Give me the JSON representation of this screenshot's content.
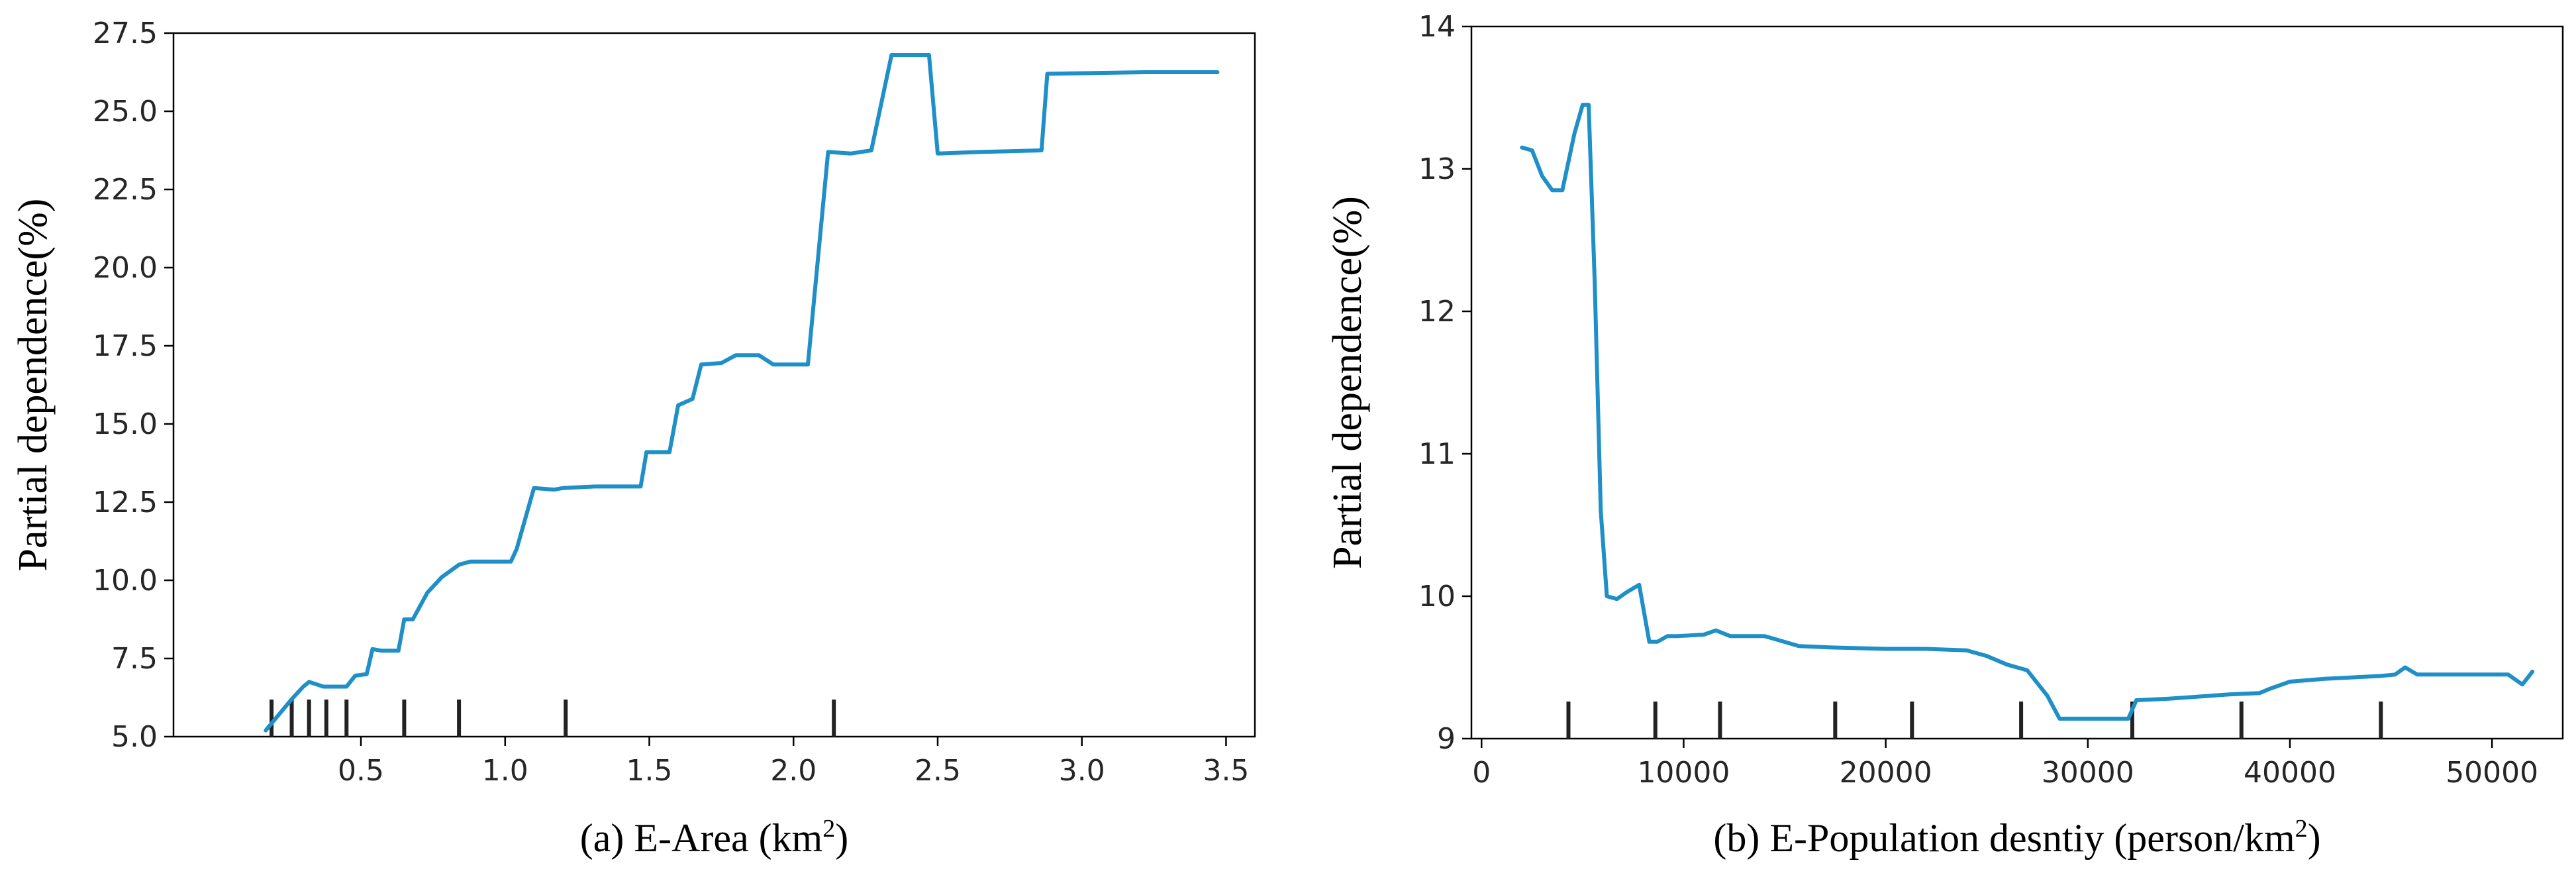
{
  "colors": {
    "line": "#1f8fc8",
    "axis": "#000000"
  },
  "chart_data": [
    {
      "type": "line",
      "panel": "a",
      "title": "",
      "caption": {
        "prefix": "(a) E-Area (km",
        "sup": "2",
        "suffix": ")"
      },
      "ylabel": "Partial dependence(%)",
      "xlim": [
        -0.15,
        3.6
      ],
      "ylim": [
        5.0,
        27.5
      ],
      "xticks": [
        0.5,
        1.0,
        1.5,
        2.0,
        2.5,
        3.0,
        3.5
      ],
      "xtick_labels": [
        "0.5",
        "1.0",
        "1.5",
        "2.0",
        "2.5",
        "3.0",
        "3.5"
      ],
      "yticks": [
        5.0,
        7.5,
        10.0,
        12.5,
        15.0,
        17.5,
        20.0,
        22.5,
        25.0,
        27.5
      ],
      "ytick_labels": [
        "5.0",
        "7.5",
        "10.0",
        "12.5",
        "15.0",
        "17.5",
        "20.0",
        "22.5",
        "25.0",
        "27.5"
      ],
      "rug": [
        0.19,
        0.26,
        0.32,
        0.38,
        0.45,
        0.65,
        0.84,
        1.21,
        2.14
      ],
      "x": [
        0.17,
        0.26,
        0.3,
        0.32,
        0.37,
        0.45,
        0.48,
        0.52,
        0.54,
        0.57,
        0.63,
        0.65,
        0.68,
        0.73,
        0.78,
        0.84,
        0.88,
        1.02,
        1.04,
        1.1,
        1.17,
        1.2,
        1.31,
        1.47,
        1.49,
        1.57,
        1.6,
        1.65,
        1.68,
        1.75,
        1.8,
        1.88,
        1.93,
        2.05,
        2.12,
        2.2,
        2.27,
        2.34,
        2.47,
        2.5,
        2.65,
        2.86,
        2.88,
        3.22,
        3.47
      ],
      "y": [
        5.2,
        6.2,
        6.6,
        6.75,
        6.6,
        6.6,
        6.95,
        7.0,
        7.8,
        7.75,
        7.75,
        8.75,
        8.75,
        9.6,
        10.1,
        10.5,
        10.6,
        10.6,
        11.0,
        12.95,
        12.9,
        12.95,
        13.0,
        13.0,
        14.1,
        14.1,
        15.6,
        15.8,
        16.9,
        16.95,
        17.2,
        17.2,
        16.9,
        16.9,
        23.7,
        23.65,
        23.75,
        26.8,
        26.8,
        23.65,
        23.7,
        23.75,
        26.2,
        26.25,
        26.25
      ]
    },
    {
      "type": "line",
      "panel": "b",
      "title": "",
      "caption": {
        "prefix": "(b) E-Population desntiy (person/km",
        "sup": "2",
        "suffix": ")"
      },
      "ylabel": "Partial dependence(%)",
      "xlim": [
        -500,
        53500
      ],
      "ylim": [
        9,
        14
      ],
      "xticks": [
        0,
        10000,
        20000,
        30000,
        40000,
        50000
      ],
      "xtick_labels": [
        "0",
        "10000",
        "20000",
        "30000",
        "40000",
        "50000"
      ],
      "yticks": [
        9,
        10,
        11,
        12,
        13,
        14
      ],
      "ytick_labels": [
        "9",
        "10",
        "11",
        "12",
        "13",
        "14"
      ],
      "rug": [
        4300,
        8600,
        11800,
        17500,
        21300,
        26700,
        32200,
        37600,
        44500
      ],
      "x": [
        2000,
        2500,
        3000,
        3500,
        4000,
        4600,
        5000,
        5300,
        5600,
        5900,
        6200,
        6700,
        7200,
        7800,
        8300,
        8700,
        9200,
        9700,
        11000,
        11600,
        12300,
        14000,
        15700,
        17300,
        20000,
        22000,
        24000,
        25000,
        26000,
        27000,
        28000,
        28600,
        32000,
        32400,
        34000,
        37000,
        38500,
        39000,
        40000,
        41700,
        44500,
        45200,
        45700,
        46300,
        50800,
        51500,
        52000
      ],
      "y": [
        13.15,
        13.13,
        12.95,
        12.85,
        12.85,
        13.25,
        13.45,
        13.45,
        12.2,
        10.6,
        10.0,
        9.98,
        10.03,
        10.08,
        9.68,
        9.68,
        9.72,
        9.72,
        9.73,
        9.76,
        9.72,
        9.72,
        9.65,
        9.64,
        9.63,
        9.63,
        9.62,
        9.58,
        9.52,
        9.48,
        9.3,
        9.14,
        9.14,
        9.27,
        9.28,
        9.31,
        9.32,
        9.35,
        9.4,
        9.42,
        9.44,
        9.45,
        9.5,
        9.45,
        9.45,
        9.38,
        9.47
      ]
    }
  ]
}
